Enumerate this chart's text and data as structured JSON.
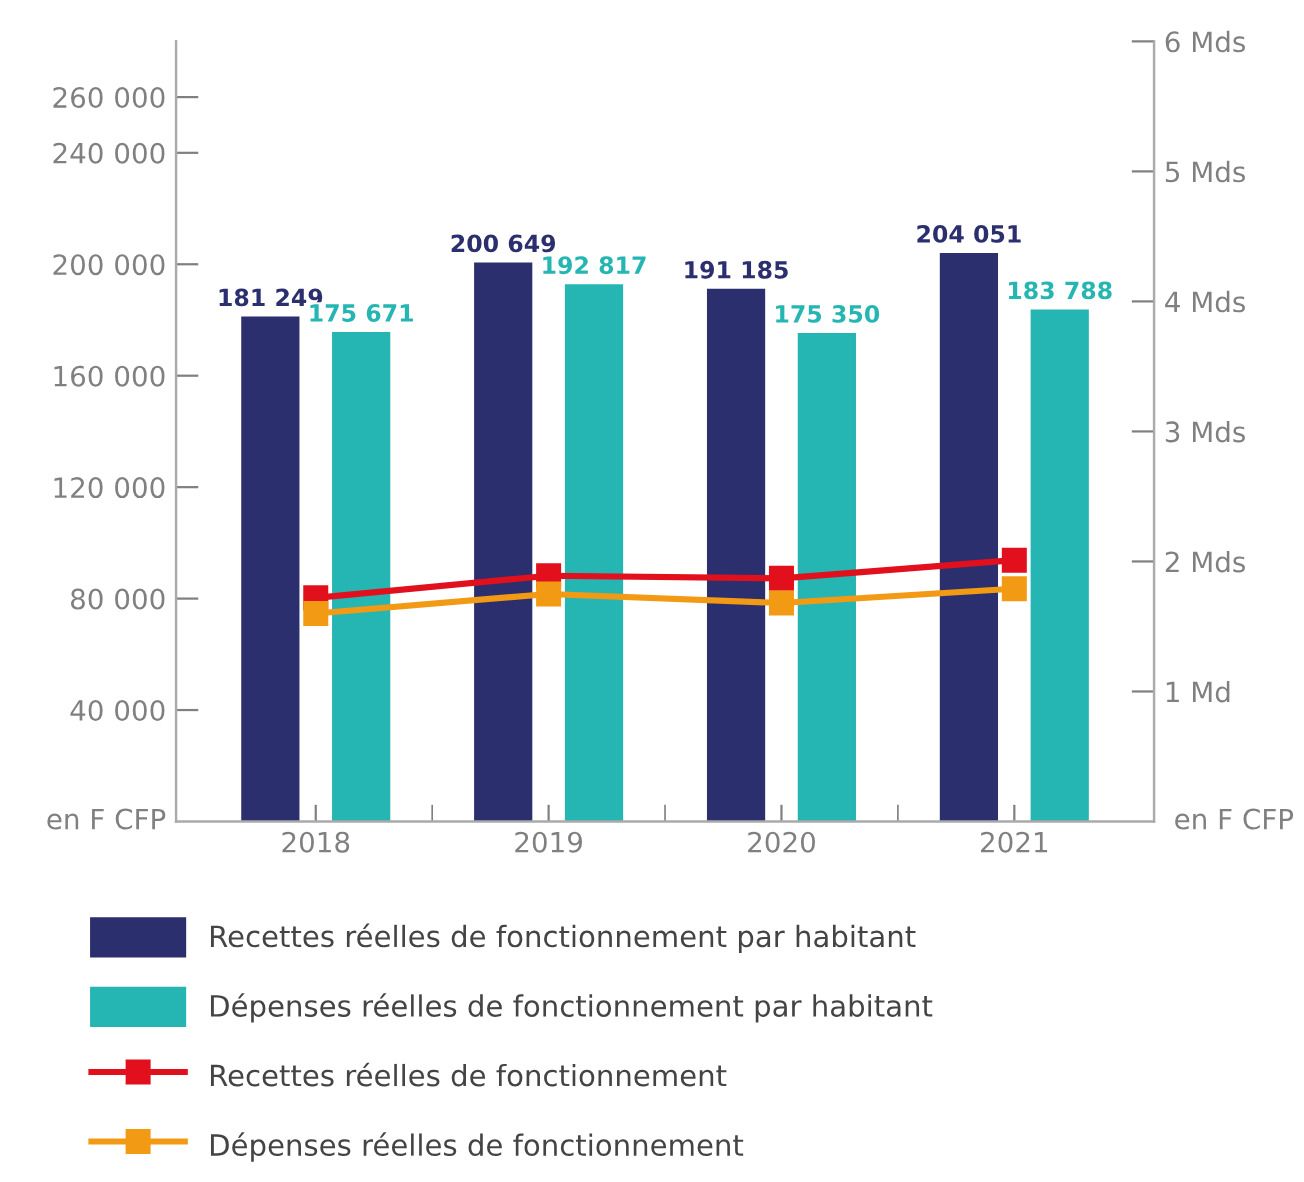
{
  "chart_data": {
    "type": "bar",
    "categories": [
      "2018",
      "2019",
      "2020",
      "2021"
    ],
    "ylabel": "en F CFP",
    "y2label": "en F CFP",
    "series": [
      {
        "name": "Recettes réelles de fonctionnement par habitant",
        "color": "#2b2f6e",
        "values": [
          181249,
          200649,
          191185,
          204051
        ],
        "value_labels": [
          "181 249",
          "200 649",
          "191 185",
          "204 051"
        ]
      },
      {
        "name": "Dépenses réelles de fonctionnement par habitant",
        "color": "#25b5b3",
        "values": [
          175671,
          192817,
          175350,
          183788
        ],
        "value_labels": [
          "175 671",
          "192 817",
          "175 350",
          "183 788"
        ]
      },
      {
        "name": "Recettes réelles de fonctionnement",
        "type": "line",
        "axis": "y2",
        "color": "#e2101d",
        "marker": "square",
        "values": [
          1.72,
          1.89,
          1.87,
          2.01
        ]
      },
      {
        "name": "Dépenses réelles de fonctionnement",
        "type": "line",
        "axis": "y2",
        "color": "#f39a14",
        "marker": "square",
        "values": [
          1.6,
          1.75,
          1.68,
          1.79
        ]
      }
    ],
    "ylim": [
      0,
      280000
    ],
    "yticks": [
      {
        "value": 40000,
        "label": "40 000"
      },
      {
        "value": 80000,
        "label": "80 000"
      },
      {
        "value": 120000,
        "label": "120 000"
      },
      {
        "value": 160000,
        "label": "160 000"
      },
      {
        "value": 200000,
        "label": "200 000"
      },
      {
        "value": 240000,
        "label": "240 000"
      },
      {
        "value": 260000,
        "label": "260 000"
      }
    ],
    "y2lim": [
      0,
      6
    ],
    "y2ticks": [
      {
        "value": 1,
        "label": "1 Md"
      },
      {
        "value": 2,
        "label": "2 Mds"
      },
      {
        "value": 3,
        "label": "3 Mds"
      },
      {
        "value": 4,
        "label": "4 Mds"
      },
      {
        "value": 5,
        "label": "5 Mds"
      },
      {
        "value": 6,
        "label": "6 Mds"
      }
    ],
    "grid": false,
    "legend": "bottom"
  }
}
